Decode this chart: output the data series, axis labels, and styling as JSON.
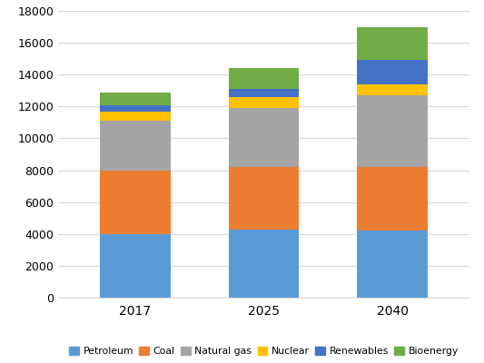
{
  "categories": [
    "2017",
    "2025",
    "2040"
  ],
  "series": [
    {
      "name": "Petroleum",
      "values": [
        4000,
        4300,
        4200
      ],
      "color": "#5B9BD5"
    },
    {
      "name": "Coal",
      "values": [
        4000,
        3900,
        4000
      ],
      "color": "#ED7D31"
    },
    {
      "name": "Natural gas",
      "values": [
        3100,
        3700,
        4500
      ],
      "color": "#A5A5A5"
    },
    {
      "name": "Nuclear",
      "values": [
        600,
        700,
        700
      ],
      "color": "#FFC000"
    },
    {
      "name": "Renewables",
      "values": [
        400,
        500,
        1500
      ],
      "color": "#4472C4"
    },
    {
      "name": "Bioenergy",
      "values": [
        800,
        1300,
        2100
      ],
      "color": "#70AD47"
    }
  ],
  "ylim": [
    0,
    18000
  ],
  "yticks": [
    0,
    2000,
    4000,
    6000,
    8000,
    10000,
    12000,
    14000,
    16000,
    18000
  ],
  "background_color": "#FFFFFF",
  "plot_area_color": "#FFFFFF",
  "grid_color": "#D9D9D9",
  "bar_width": 0.55,
  "tick_fontsize": 9,
  "xlabel_fontsize": 10,
  "legend_fontsize": 7.8
}
